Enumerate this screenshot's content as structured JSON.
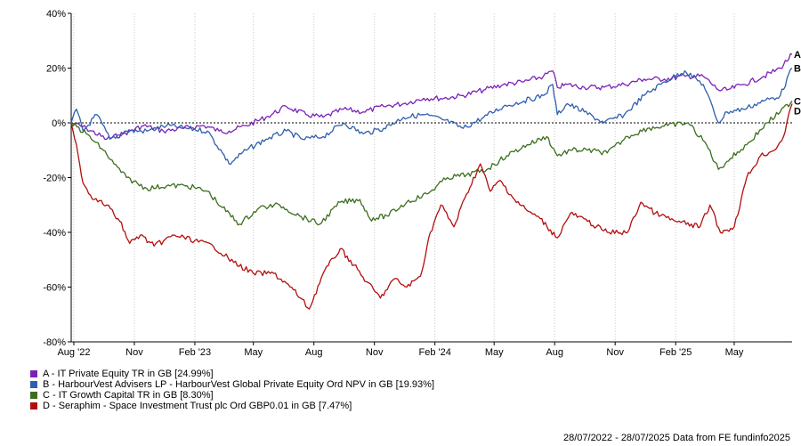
{
  "chart_data": {
    "type": "line",
    "x_range": [
      "2022-07-28",
      "2025-07-28"
    ],
    "ylim": [
      -80,
      40
    ],
    "y_ticks": [
      40,
      20,
      0,
      -20,
      -40,
      -60,
      -80
    ],
    "y_tick_labels": [
      "40%",
      "20%",
      "0%",
      "-20%",
      "-40%",
      "-60%",
      "-80%"
    ],
    "x_ticks": [
      "2022-08-01",
      "2022-11-01",
      "2023-02-01",
      "2023-05-01",
      "2023-08-01",
      "2023-11-01",
      "2024-02-01",
      "2024-05-01",
      "2024-08-01",
      "2024-11-01",
      "2025-02-01",
      "2025-05-01"
    ],
    "x_tick_labels": [
      "Aug '22",
      "Nov",
      "Feb '23",
      "May",
      "Aug",
      "Nov",
      "Feb '24",
      "May",
      "Aug",
      "Nov",
      "Feb '25",
      "May"
    ],
    "grid": "vertical-dotted",
    "zero_line": "dashed",
    "legend_position": "bottom-left",
    "series": [
      {
        "name": "A - IT Private Equity TR in GB [24.99%]",
        "end_label": "A",
        "color": "#7b22b5",
        "points": [
          [
            "2022-07-28",
            0
          ],
          [
            "2022-08-20",
            -2
          ],
          [
            "2022-09-20",
            -6
          ],
          [
            "2022-10-15",
            -4
          ],
          [
            "2022-11-15",
            -1
          ],
          [
            "2022-12-15",
            -3
          ],
          [
            "2023-01-15",
            -2
          ],
          [
            "2023-02-15",
            -1
          ],
          [
            "2023-03-10",
            -3
          ],
          [
            "2023-03-25",
            -3
          ],
          [
            "2023-04-20",
            -1
          ],
          [
            "2023-05-20",
            2
          ],
          [
            "2023-06-20",
            6
          ],
          [
            "2023-07-20",
            3
          ],
          [
            "2023-08-15",
            2
          ],
          [
            "2023-09-15",
            5
          ],
          [
            "2023-10-15",
            4
          ],
          [
            "2023-11-15",
            6
          ],
          [
            "2023-12-15",
            7
          ],
          [
            "2024-01-15",
            9
          ],
          [
            "2024-02-15",
            9
          ],
          [
            "2024-03-15",
            10
          ],
          [
            "2024-04-15",
            12
          ],
          [
            "2024-05-15",
            14
          ],
          [
            "2024-06-15",
            15
          ],
          [
            "2024-07-15",
            17
          ],
          [
            "2024-07-29",
            19
          ],
          [
            "2024-08-05",
            13
          ],
          [
            "2024-08-20",
            14
          ],
          [
            "2024-09-15",
            13
          ],
          [
            "2024-10-15",
            13
          ],
          [
            "2024-11-15",
            14
          ],
          [
            "2024-12-15",
            16
          ],
          [
            "2025-01-15",
            16
          ],
          [
            "2025-02-15",
            17
          ],
          [
            "2025-03-15",
            17
          ],
          [
            "2025-04-07",
            12
          ],
          [
            "2025-04-20",
            12
          ],
          [
            "2025-05-15",
            14
          ],
          [
            "2025-06-15",
            17
          ],
          [
            "2025-07-10",
            20
          ],
          [
            "2025-07-28",
            25
          ]
        ]
      },
      {
        "name": "B - HarbourVest Advisers LP - HarbourVest Global Private Equity Ord NPV in GB [19.93%]",
        "end_label": "B",
        "color": "#2f5fad",
        "points": [
          [
            "2022-07-28",
            0
          ],
          [
            "2022-08-05",
            5
          ],
          [
            "2022-08-15",
            -3
          ],
          [
            "2022-09-05",
            3
          ],
          [
            "2022-09-25",
            -6
          ],
          [
            "2022-10-20",
            -3
          ],
          [
            "2022-11-20",
            -3
          ],
          [
            "2022-12-20",
            -1
          ],
          [
            "2023-01-20",
            -2
          ],
          [
            "2023-02-20",
            -3
          ],
          [
            "2023-03-15",
            -11
          ],
          [
            "2023-03-25",
            -15
          ],
          [
            "2023-04-20",
            -10
          ],
          [
            "2023-05-20",
            -6
          ],
          [
            "2023-06-20",
            -3
          ],
          [
            "2023-07-15",
            -6
          ],
          [
            "2023-08-15",
            -5
          ],
          [
            "2023-09-15",
            0
          ],
          [
            "2023-10-15",
            -4
          ],
          [
            "2023-11-15",
            -2
          ],
          [
            "2023-12-15",
            2
          ],
          [
            "2024-01-15",
            3
          ],
          [
            "2024-02-15",
            1
          ],
          [
            "2024-03-15",
            -2
          ],
          [
            "2024-04-15",
            2
          ],
          [
            "2024-05-15",
            6
          ],
          [
            "2024-06-15",
            8
          ],
          [
            "2024-07-15",
            10
          ],
          [
            "2024-07-29",
            14
          ],
          [
            "2024-08-05",
            3
          ],
          [
            "2024-08-20",
            7
          ],
          [
            "2024-09-15",
            4
          ],
          [
            "2024-10-15",
            0
          ],
          [
            "2024-11-15",
            3
          ],
          [
            "2024-12-15",
            10
          ],
          [
            "2025-01-15",
            15
          ],
          [
            "2025-02-15",
            19
          ],
          [
            "2025-03-15",
            14
          ],
          [
            "2025-04-07",
            0
          ],
          [
            "2025-04-20",
            4
          ],
          [
            "2025-05-15",
            5
          ],
          [
            "2025-06-15",
            8
          ],
          [
            "2025-07-10",
            10
          ],
          [
            "2025-07-28",
            20
          ]
        ]
      },
      {
        "name": "C - IT Growth Capital TR in GB [8.30%]",
        "end_label": "C",
        "color": "#3c6e1e",
        "points": [
          [
            "2022-07-28",
            0
          ],
          [
            "2022-08-20",
            -4
          ],
          [
            "2022-09-15",
            -10
          ],
          [
            "2022-10-01",
            -15
          ],
          [
            "2022-10-20",
            -20
          ],
          [
            "2022-11-20",
            -24
          ],
          [
            "2022-12-20",
            -23
          ],
          [
            "2023-01-20",
            -23
          ],
          [
            "2023-02-20",
            -25
          ],
          [
            "2023-03-15",
            -31
          ],
          [
            "2023-04-10",
            -37
          ],
          [
            "2023-05-10",
            -31
          ],
          [
            "2023-06-10",
            -30
          ],
          [
            "2023-07-10",
            -34
          ],
          [
            "2023-08-10",
            -37
          ],
          [
            "2023-09-10",
            -29
          ],
          [
            "2023-10-10",
            -28
          ],
          [
            "2023-10-25",
            -35
          ],
          [
            "2023-11-20",
            -34
          ],
          [
            "2023-12-20",
            -29
          ],
          [
            "2024-01-20",
            -26
          ],
          [
            "2024-02-20",
            -20
          ],
          [
            "2024-03-20",
            -19
          ],
          [
            "2024-04-20",
            -17
          ],
          [
            "2024-05-20",
            -12
          ],
          [
            "2024-06-20",
            -8
          ],
          [
            "2024-07-20",
            -5
          ],
          [
            "2024-08-05",
            -12
          ],
          [
            "2024-08-25",
            -10
          ],
          [
            "2024-09-20",
            -10
          ],
          [
            "2024-10-20",
            -11
          ],
          [
            "2024-11-20",
            -5
          ],
          [
            "2024-12-20",
            -2
          ],
          [
            "2025-01-20",
            -1
          ],
          [
            "2025-02-20",
            0
          ],
          [
            "2025-03-20",
            -8
          ],
          [
            "2025-04-07",
            -17
          ],
          [
            "2025-04-25",
            -13
          ],
          [
            "2025-05-20",
            -8
          ],
          [
            "2025-06-20",
            0
          ],
          [
            "2025-07-10",
            4
          ],
          [
            "2025-07-28",
            8
          ]
        ]
      },
      {
        "name": "D - Seraphim - Space Investment Trust plc Ord GBP0.01 in GB [7.47%]",
        "end_label": "D",
        "color": "#b30e0e",
        "points": [
          [
            "2022-07-28",
            0
          ],
          [
            "2022-08-05",
            -8
          ],
          [
            "2022-08-15",
            -22
          ],
          [
            "2022-09-01",
            -28
          ],
          [
            "2022-09-20",
            -30
          ],
          [
            "2022-10-10",
            -36
          ],
          [
            "2022-10-25",
            -44
          ],
          [
            "2022-11-10",
            -41
          ],
          [
            "2022-12-01",
            -45
          ],
          [
            "2023-01-01",
            -41
          ],
          [
            "2023-02-01",
            -43
          ],
          [
            "2023-03-01",
            -45
          ],
          [
            "2023-04-01",
            -51
          ],
          [
            "2023-05-01",
            -55
          ],
          [
            "2023-06-01",
            -55
          ],
          [
            "2023-07-01",
            -61
          ],
          [
            "2023-07-25",
            -68
          ],
          [
            "2023-08-15",
            -55
          ],
          [
            "2023-09-10",
            -46
          ],
          [
            "2023-10-01",
            -52
          ],
          [
            "2023-10-20",
            -58
          ],
          [
            "2023-11-10",
            -64
          ],
          [
            "2023-12-01",
            -57
          ],
          [
            "2023-12-20",
            -60
          ],
          [
            "2024-01-10",
            -56
          ],
          [
            "2024-01-25",
            -40
          ],
          [
            "2024-02-10",
            -30
          ],
          [
            "2024-03-01",
            -38
          ],
          [
            "2024-03-20",
            -26
          ],
          [
            "2024-04-10",
            -15
          ],
          [
            "2024-04-25",
            -25
          ],
          [
            "2024-05-10",
            -21
          ],
          [
            "2024-06-01",
            -28
          ],
          [
            "2024-06-20",
            -32
          ],
          [
            "2024-07-10",
            -35
          ],
          [
            "2024-08-05",
            -42
          ],
          [
            "2024-08-25",
            -33
          ],
          [
            "2024-09-20",
            -36
          ],
          [
            "2024-10-20",
            -40
          ],
          [
            "2024-11-20",
            -40
          ],
          [
            "2024-12-10",
            -29
          ],
          [
            "2025-01-01",
            -33
          ],
          [
            "2025-02-01",
            -36
          ],
          [
            "2025-03-10",
            -38
          ],
          [
            "2025-03-25",
            -30
          ],
          [
            "2025-04-10",
            -40
          ],
          [
            "2025-05-01",
            -38
          ],
          [
            "2025-05-20",
            -20
          ],
          [
            "2025-06-10",
            -12
          ],
          [
            "2025-07-01",
            -10
          ],
          [
            "2025-07-15",
            -5
          ],
          [
            "2025-07-28",
            7
          ]
        ]
      }
    ],
    "footer": "28/07/2022 - 28/07/2025 Data from FE fundinfo2025"
  }
}
